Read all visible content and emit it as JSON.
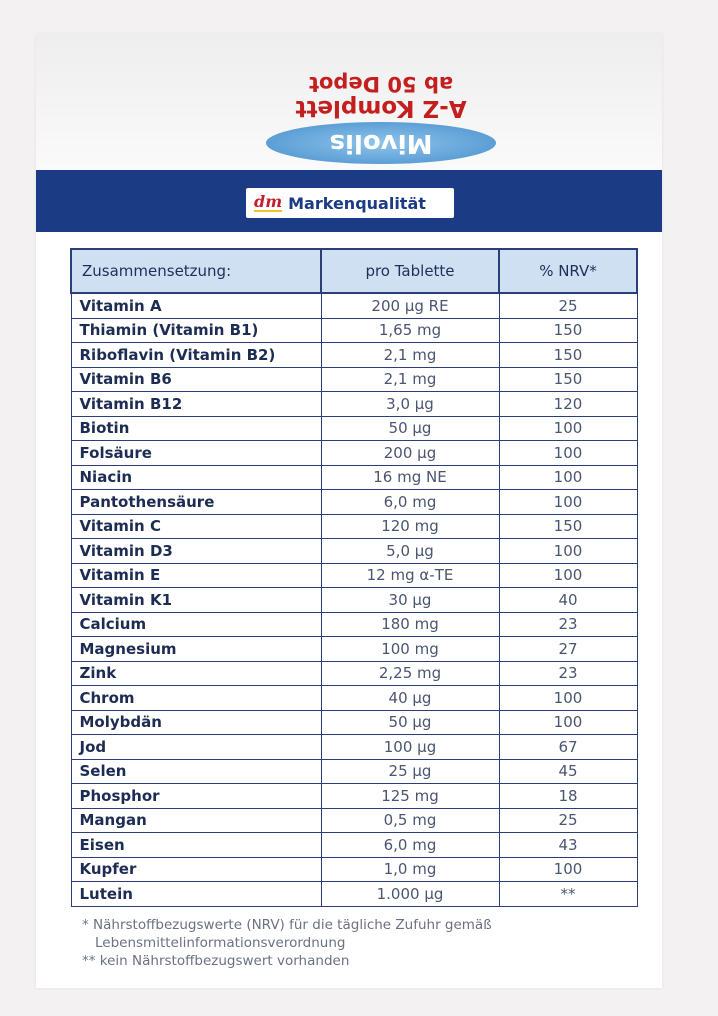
{
  "colors": {
    "navy_band": "#1b3b84",
    "header_blue": "#cfe0f3",
    "brand_red": "#c31f2c",
    "text_navy": "#1e2f58"
  },
  "box_top": {
    "brand_mark": "Mivolis",
    "product_name": "A-Z Komplett",
    "product_sub": "ab 50 Depot"
  },
  "badge": {
    "logo": "dm",
    "label": "Markenqualität"
  },
  "table": {
    "headers": [
      "Zusammensetzung:",
      "pro Tablette",
      "% NRV*"
    ],
    "rows": [
      {
        "name": "Vitamin A",
        "amount": "200 µg RE",
        "nrv": "25"
      },
      {
        "name": "Thiamin (Vitamin B1)",
        "amount": "1,65 mg",
        "nrv": "150"
      },
      {
        "name": "Riboflavin (Vitamin B2)",
        "amount": "2,1 mg",
        "nrv": "150"
      },
      {
        "name": "Vitamin B6",
        "amount": "2,1 mg",
        "nrv": "150"
      },
      {
        "name": "Vitamin B12",
        "amount": "3,0 µg",
        "nrv": "120"
      },
      {
        "name": "Biotin",
        "amount": "50 µg",
        "nrv": "100"
      },
      {
        "name": "Folsäure",
        "amount": "200 µg",
        "nrv": "100"
      },
      {
        "name": "Niacin",
        "amount": "16 mg NE",
        "nrv": "100"
      },
      {
        "name": "Pantothensäure",
        "amount": "6,0 mg",
        "nrv": "100"
      },
      {
        "name": "Vitamin C",
        "amount": "120 mg",
        "nrv": "150"
      },
      {
        "name": "Vitamin D3",
        "amount": "5,0 µg",
        "nrv": "100"
      },
      {
        "name": "Vitamin E",
        "amount": "12 mg α-TE",
        "nrv": "100"
      },
      {
        "name": "Vitamin K1",
        "amount": "30 µg",
        "nrv": "40"
      },
      {
        "name": "Calcium",
        "amount": "180 mg",
        "nrv": "23"
      },
      {
        "name": "Magnesium",
        "amount": "100 mg",
        "nrv": "27"
      },
      {
        "name": "Zink",
        "amount": "2,25 mg",
        "nrv": "23"
      },
      {
        "name": "Chrom",
        "amount": "40 µg",
        "nrv": "100"
      },
      {
        "name": "Molybdän",
        "amount": "50 µg",
        "nrv": "100"
      },
      {
        "name": "Jod",
        "amount": "100 µg",
        "nrv": "67"
      },
      {
        "name": "Selen",
        "amount": "25 µg",
        "nrv": "45"
      },
      {
        "name": "Phosphor",
        "amount": "125 mg",
        "nrv": "18"
      },
      {
        "name": "Mangan",
        "amount": "0,5 mg",
        "nrv": "25"
      },
      {
        "name": "Eisen",
        "amount": "6,0 mg",
        "nrv": "43"
      },
      {
        "name": "Kupfer",
        "amount": "1,0 mg",
        "nrv": "100"
      },
      {
        "name": "Lutein",
        "amount": "1.000 µg",
        "nrv": "**"
      }
    ]
  },
  "notes": {
    "line1": "* Nährstoffbezugswerte (NRV) für die tägliche Zufuhr gemäß",
    "line2": "Lebensmittelinformationsverordnung",
    "line3": "** kein Nährstoffbezugswert vorhanden"
  }
}
